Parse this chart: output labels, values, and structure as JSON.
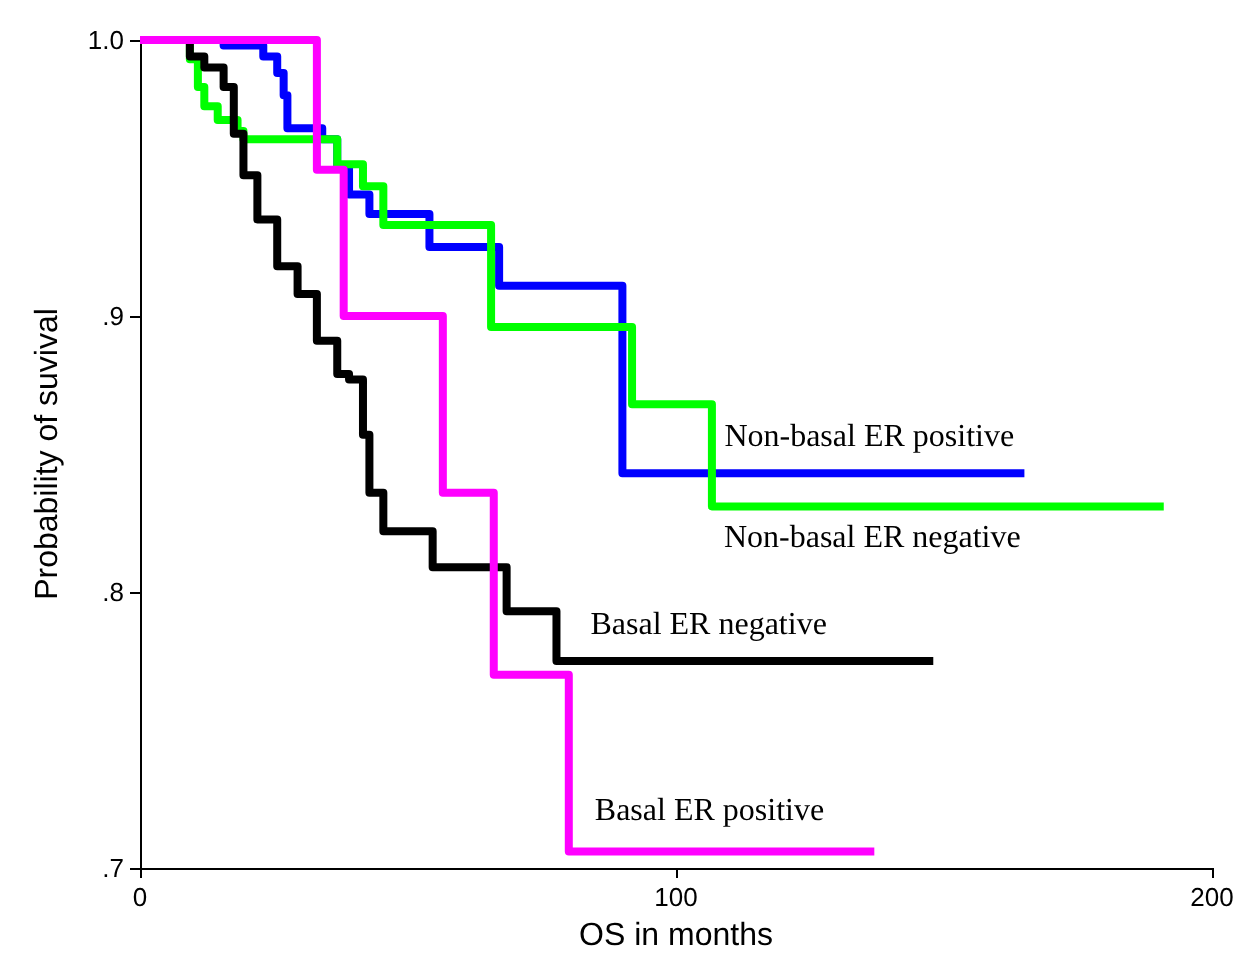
{
  "chart_data": {
    "type": "step",
    "xlabel": "OS in months",
    "ylabel": "Probability of suvival",
    "xlim": [
      0,
      200
    ],
    "xticks": [
      0,
      100,
      200
    ],
    "ylim": [
      0.7,
      1.0
    ],
    "yticks": [
      {
        "value": 0.7,
        "label": ".7"
      },
      {
        "value": 0.8,
        "label": ".8"
      },
      {
        "value": 0.9,
        "label": ".9"
      },
      {
        "value": 1.0,
        "label": "1.0"
      }
    ],
    "grid": false,
    "legend": false,
    "series": [
      {
        "name": "Non-basal ER positive",
        "color": "#0000ff",
        "x": [
          0,
          15.6,
          23,
          25.6,
          26.8,
          27.5,
          34,
          36.8,
          39,
          42.8,
          54,
          67,
          90,
          165
        ],
        "values": [
          1.0,
          0.998,
          0.994,
          0.988,
          0.98,
          0.968,
          0.964,
          0.954,
          0.944,
          0.937,
          0.925,
          0.911,
          0.843,
          0.843
        ]
      },
      {
        "name": "Non-basal ER negative",
        "color": "#00ff00",
        "x": [
          0,
          9.3,
          10.8,
          12,
          14.5,
          18.2,
          19.3,
          34,
          36.8,
          41.6,
          45.4,
          65.5,
          91.8,
          106.7,
          191
        ],
        "values": [
          1.0,
          0.993,
          0.983,
          0.976,
          0.971,
          0.967,
          0.964,
          0.964,
          0.955,
          0.947,
          0.933,
          0.896,
          0.868,
          0.831,
          0.831
        ]
      },
      {
        "name": "Basal ER negative",
        "color": "#000000",
        "x": [
          0,
          9.3,
          12,
          15.6,
          17.5,
          19.3,
          21.9,
          25.6,
          29.4,
          33,
          36.8,
          39,
          41.6,
          42.8,
          45.4,
          54.6,
          68.4,
          77.7,
          148
        ],
        "values": [
          1.0,
          0.994,
          0.99,
          0.983,
          0.966,
          0.951,
          0.935,
          0.918,
          0.908,
          0.891,
          0.879,
          0.877,
          0.857,
          0.836,
          0.822,
          0.809,
          0.793,
          0.775,
          0.775
        ]
      },
      {
        "name": "Basal ER positive",
        "color": "#ff00ff",
        "x": [
          0,
          33,
          38,
          56.5,
          66,
          80,
          137
        ],
        "values": [
          1.0,
          0.953,
          0.9,
          0.836,
          0.77,
          0.706,
          0.706
        ]
      }
    ]
  }
}
